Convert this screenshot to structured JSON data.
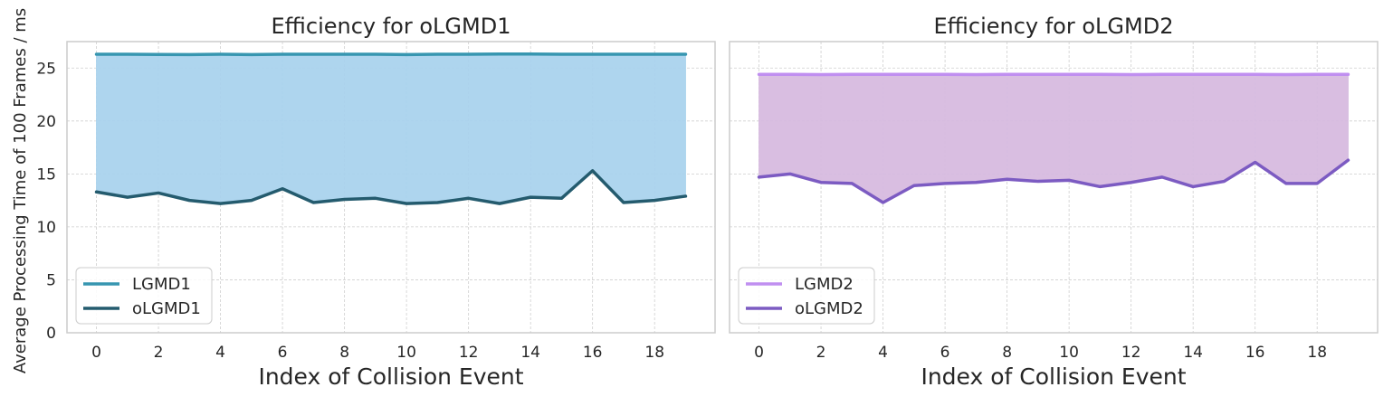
{
  "chart_data": [
    {
      "type": "line",
      "title": "Efficiency for oLGMD1",
      "xlabel": "Index of Collision Event",
      "ylabel": "Average Processing Time of 100 Frames / ms",
      "x": [
        0,
        1,
        2,
        3,
        4,
        5,
        6,
        7,
        8,
        9,
        10,
        11,
        12,
        13,
        14,
        15,
        16,
        17,
        18,
        19
      ],
      "xticks": [
        0,
        2,
        4,
        6,
        8,
        10,
        12,
        14,
        16,
        18
      ],
      "yticks": [
        0,
        5,
        10,
        15,
        20,
        25
      ],
      "ylim": [
        0,
        27.5
      ],
      "xlim": [
        -0.95,
        19.95
      ],
      "grid": true,
      "legend_position": "lower-left",
      "fill_between": {
        "color": "#aad3ee"
      },
      "series": [
        {
          "name": "LGMD1",
          "color": "#3796b0",
          "values": [
            26.3,
            26.3,
            26.28,
            26.27,
            26.3,
            26.27,
            26.3,
            26.3,
            26.3,
            26.3,
            26.27,
            26.3,
            26.3,
            26.33,
            26.33,
            26.3,
            26.3,
            26.3,
            26.3,
            26.3
          ]
        },
        {
          "name": "oLGMD1",
          "color": "#245b6e",
          "values": [
            13.3,
            12.8,
            13.2,
            12.5,
            12.2,
            12.5,
            13.6,
            12.3,
            12.6,
            12.7,
            12.2,
            12.3,
            12.7,
            12.2,
            12.8,
            12.7,
            15.3,
            12.3,
            12.5,
            12.9
          ]
        }
      ]
    },
    {
      "type": "line",
      "title": "Efficiency for oLGMD2",
      "xlabel": "Index of Collision Event",
      "ylabel": "",
      "x": [
        0,
        1,
        2,
        3,
        4,
        5,
        6,
        7,
        8,
        9,
        10,
        11,
        12,
        13,
        14,
        15,
        16,
        17,
        18,
        19
      ],
      "xticks": [
        0,
        2,
        4,
        6,
        8,
        10,
        12,
        14,
        16,
        18
      ],
      "yticks": [],
      "ylim": [
        0,
        27.5
      ],
      "xlim": [
        -0.95,
        19.95
      ],
      "grid": true,
      "legend_position": "lower-left",
      "fill_between": {
        "color": "#d7bbe0"
      },
      "series": [
        {
          "name": "LGMD2",
          "color": "#c08ff0",
          "values": [
            24.4,
            24.4,
            24.38,
            24.4,
            24.4,
            24.4,
            24.4,
            24.38,
            24.4,
            24.4,
            24.4,
            24.4,
            24.38,
            24.4,
            24.4,
            24.4,
            24.4,
            24.38,
            24.4,
            24.4
          ]
        },
        {
          "name": "oLGMD2",
          "color": "#7c5bc2",
          "values": [
            14.7,
            15.0,
            14.2,
            14.1,
            12.3,
            13.9,
            14.1,
            14.2,
            14.5,
            14.3,
            14.4,
            13.8,
            14.2,
            14.7,
            13.8,
            14.3,
            16.1,
            14.1,
            14.1,
            16.3
          ]
        }
      ]
    }
  ]
}
